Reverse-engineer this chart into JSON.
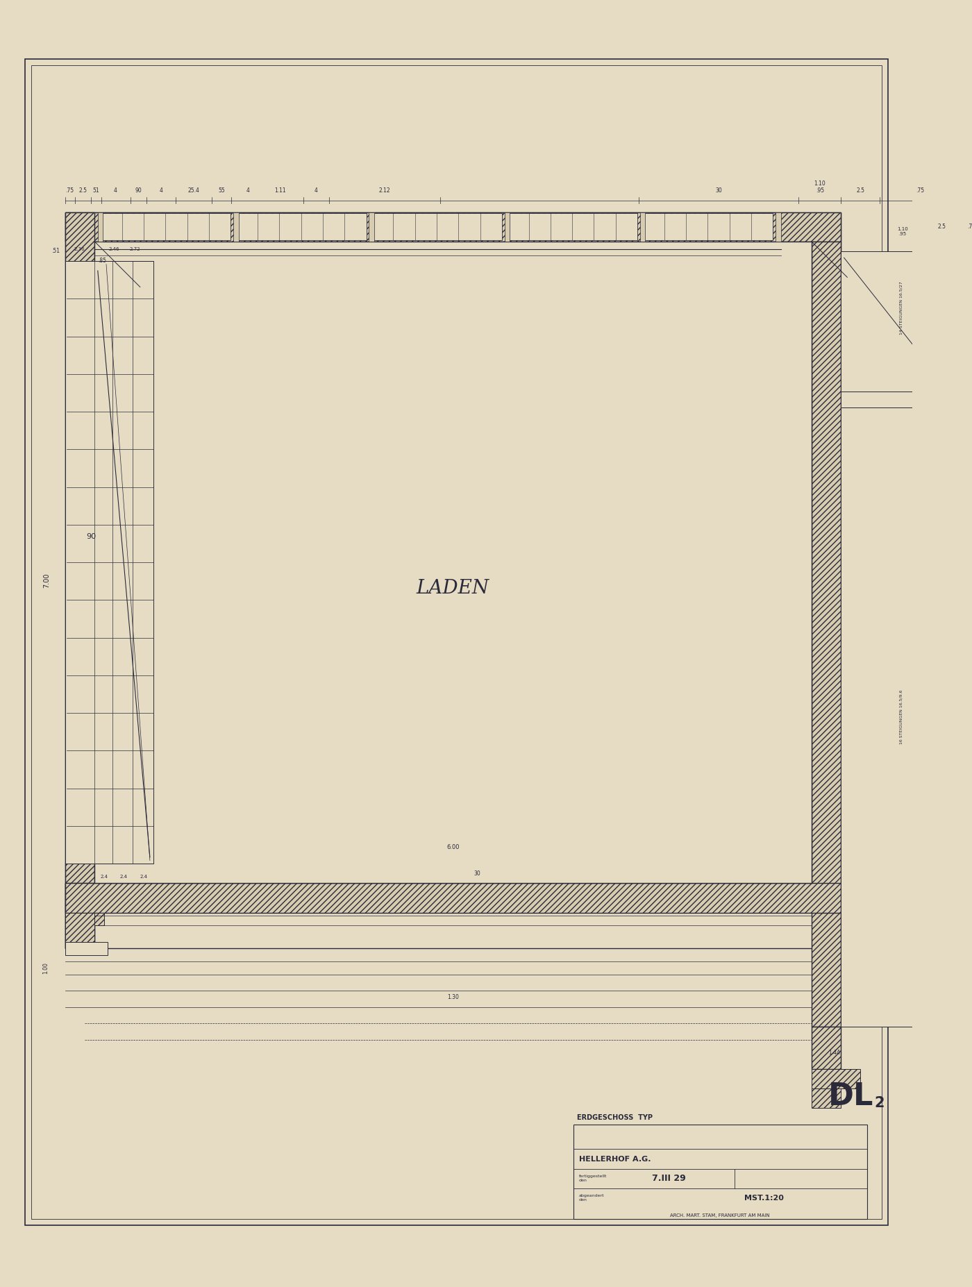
{
  "bg_color": "#e6dcc4",
  "line_color": "#2a2a3a",
  "wall_fc": "#d8ccb0",
  "title_text": "LADEN",
  "title_fontsize": 18,
  "scale_text": "MST.1:20",
  "date_text": "7.III 29",
  "firm_text": "HELLERHOF A.G.",
  "type_text": "ERDGESCHOSS  TYP",
  "dl_text": "DL",
  "arch_text": "ARCH. MART. STAM, FRANKFURT AM MAIN",
  "dim_width": "6.00",
  "dim_height": "7.00"
}
